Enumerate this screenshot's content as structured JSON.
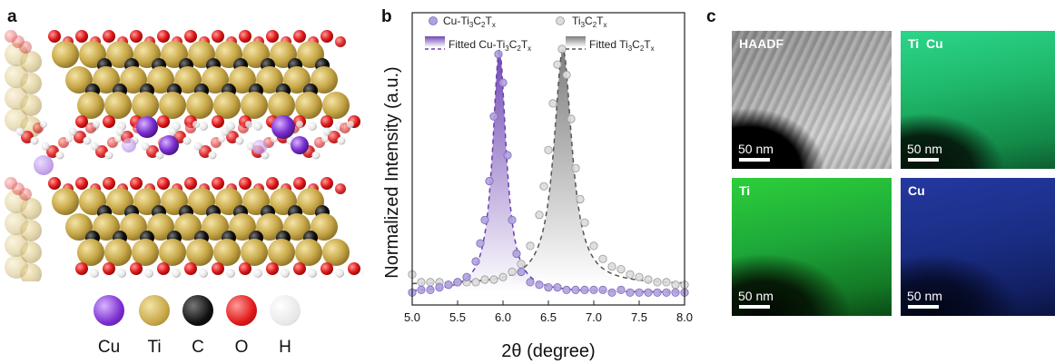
{
  "panel_a": {
    "letter": "a",
    "legend": [
      {
        "label": "Cu",
        "color": "#7a2fd0"
      },
      {
        "label": "Ti",
        "color": "#c8a848"
      },
      {
        "label": "C",
        "color": "#111111"
      },
      {
        "label": "O",
        "color": "#e01818"
      },
      {
        "label": "H",
        "color": "#e6e6e6"
      }
    ]
  },
  "panel_b": {
    "letter": "b",
    "chart_data": {
      "type": "scatter",
      "title": "",
      "xlabel": "2θ (degree)",
      "ylabel": "Normalized Intensity (a.u.)",
      "xlim": [
        5.0,
        8.0
      ],
      "ylim": [
        0,
        1.1
      ],
      "xticks": [
        "5.0",
        "5.5",
        "6.0",
        "6.5",
        "7.0",
        "7.5",
        "8.0"
      ],
      "legend_placement": "top",
      "legend": {
        "cu_points": "Cu-Ti3C2Tx",
        "ti_points": "Ti3C2Tx",
        "cu_fit": "Fitted Cu-Ti3C2Tx",
        "ti_fit": "Fitted Ti3C2Tx"
      },
      "series": [
        {
          "name": "Cu-Ti3C2Tx",
          "color": "#8a6cc8",
          "x": [
            5.0,
            5.1,
            5.2,
            5.3,
            5.4,
            5.5,
            5.6,
            5.7,
            5.75,
            5.8,
            5.85,
            5.9,
            5.95,
            6.0,
            6.05,
            6.1,
            6.15,
            6.2,
            6.3,
            6.4,
            6.5,
            6.6,
            6.7,
            6.8,
            6.9,
            7.0,
            7.1,
            7.2,
            7.3,
            7.4,
            7.5,
            7.6,
            7.7,
            7.8,
            7.9,
            8.0
          ],
          "y": [
            0.02,
            0.03,
            0.03,
            0.04,
            0.05,
            0.06,
            0.08,
            0.14,
            0.21,
            0.3,
            0.45,
            0.7,
            0.94,
            0.83,
            0.55,
            0.3,
            0.17,
            0.1,
            0.06,
            0.05,
            0.04,
            0.04,
            0.03,
            0.03,
            0.03,
            0.03,
            0.03,
            0.02,
            0.03,
            0.02,
            0.02,
            0.02,
            0.02,
            0.02,
            0.02,
            0.02
          ]
        },
        {
          "name": "Ti3C2Tx",
          "color": "#bdbdbd",
          "x": [
            5.0,
            5.1,
            5.2,
            5.3,
            5.4,
            5.5,
            5.6,
            5.7,
            5.8,
            5.9,
            6.0,
            6.1,
            6.2,
            6.3,
            6.4,
            6.45,
            6.5,
            6.55,
            6.6,
            6.65,
            6.7,
            6.75,
            6.8,
            6.85,
            6.9,
            7.0,
            7.1,
            7.2,
            7.3,
            7.4,
            7.5,
            7.6,
            7.7,
            7.8,
            7.9,
            8.0
          ],
          "y": [
            0.09,
            0.06,
            0.06,
            0.06,
            0.05,
            0.06,
            0.06,
            0.06,
            0.07,
            0.07,
            0.08,
            0.1,
            0.13,
            0.2,
            0.32,
            0.43,
            0.57,
            0.75,
            0.9,
            0.96,
            0.86,
            0.69,
            0.5,
            0.38,
            0.29,
            0.2,
            0.15,
            0.12,
            0.11,
            0.09,
            0.08,
            0.07,
            0.06,
            0.06,
            0.05,
            0.05
          ]
        }
      ],
      "fits": [
        {
          "name": "Fitted Cu-Ti3C2Tx",
          "center": 5.96,
          "width": 0.09,
          "height": 0.94,
          "baseline": 0.02,
          "color": "#6a3fb0"
        },
        {
          "name": "Fitted Ti3C2Tx",
          "center": 6.66,
          "width": 0.12,
          "height": 0.91,
          "baseline": 0.05,
          "color": "#555555"
        }
      ]
    }
  },
  "panel_c": {
    "letter": "c",
    "maps": [
      {
        "label": "HAADF",
        "scale": "50 nm",
        "color": "#9a9a9a"
      },
      {
        "label": "Ti  Cu",
        "scale": "50 nm",
        "color": "#1fb86a"
      },
      {
        "label": "Ti",
        "scale": "50 nm",
        "color": "#1ea83a"
      },
      {
        "label": "Cu",
        "scale": "50 nm",
        "color": "#1a2e86"
      }
    ]
  }
}
